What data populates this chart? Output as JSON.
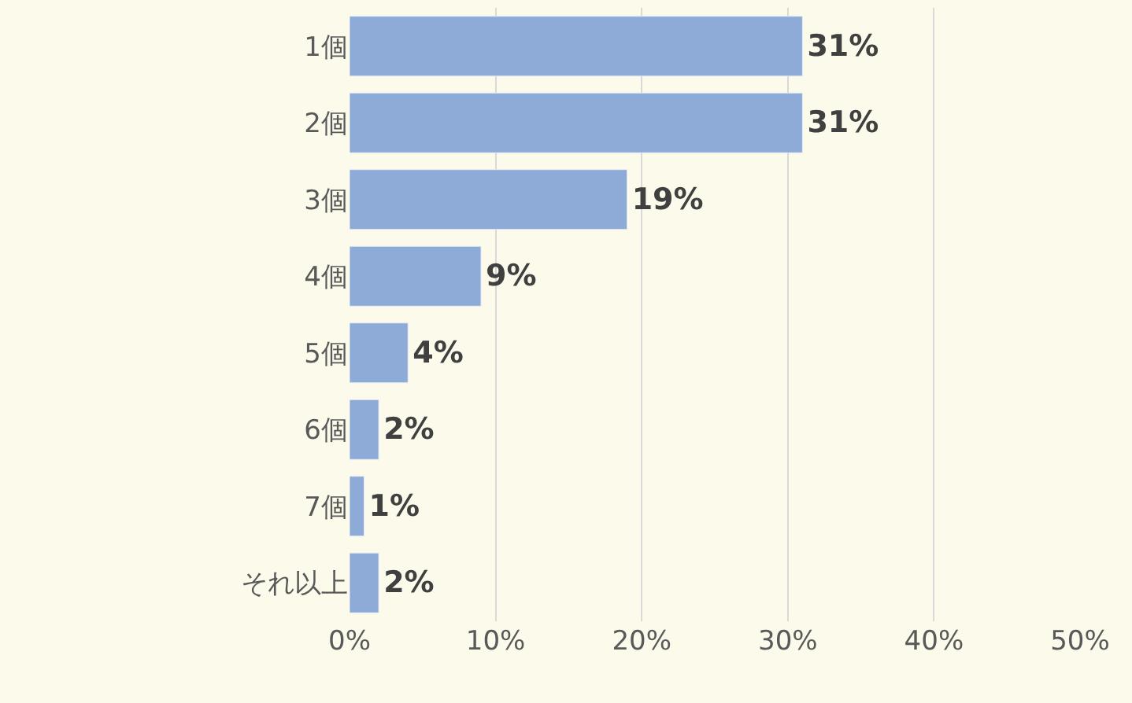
{
  "chart_data": {
    "type": "bar",
    "orientation": "horizontal",
    "categories": [
      "1個",
      "2個",
      "3個",
      "4個",
      "5個",
      "6個",
      "7個",
      "それ以上"
    ],
    "values": [
      31,
      31,
      19,
      9,
      4,
      2,
      1,
      2
    ],
    "color": "#8eaad6",
    "xlim": [
      0,
      50
    ],
    "xticks": [
      {
        "value": 0,
        "label": "0%"
      },
      {
        "value": 10,
        "label": "10%"
      },
      {
        "value": 20,
        "label": "20%"
      },
      {
        "value": 30,
        "label": "30%"
      },
      {
        "value": 40,
        "label": "40%"
      },
      {
        "value": 50,
        "label": "50%"
      }
    ],
    "value_labels": [
      "31%",
      "31%",
      "19%",
      "9%",
      "4%",
      "2%",
      "1%",
      "2%"
    ],
    "grid": "x"
  }
}
